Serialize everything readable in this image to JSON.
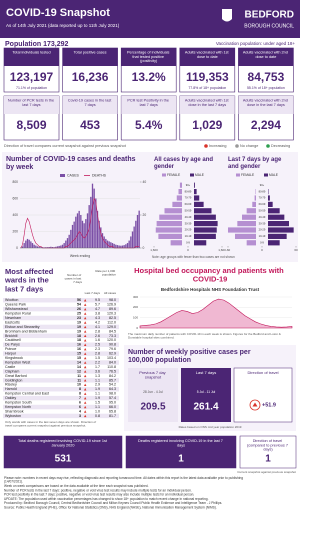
{
  "header": {
    "title": "COVID-19 Snapshot",
    "subtitle": "As of 14th July 2021 (data reported up to 11th July 2021)",
    "org_line1": "BEDFORD",
    "org_line2": "BOROUGH COUNCIL"
  },
  "population": {
    "label": "Population 173,292",
    "note": "Vaccination population: under aged 18+"
  },
  "tiles": [
    {
      "label": "Total individuals tested",
      "value": "123,197",
      "note": "71.1% of population"
    },
    {
      "label": "Total positive cases",
      "value": "16,236"
    },
    {
      "label": "Percentage of individuals that tested positive (positivity)",
      "value": "13.2%"
    },
    {
      "label": "Adults vaccinated with 1st dose to date",
      "value": "119,353",
      "note": "77.8% of 18+ population"
    },
    {
      "label": "Adults vaccinated with 2nd dose to date",
      "value": "84,753",
      "note": "55.1% of 18+ population"
    }
  ],
  "tiles_7day": [
    {
      "label": "Number of PCR tests in the last 7 days",
      "value": "8,509"
    },
    {
      "label": "Covid-19 cases in the last 7 days",
      "value": "453"
    },
    {
      "label": "PCR test Positivity in the last 7 days",
      "value": "5.4%"
    },
    {
      "label": "Adults vaccinated with 1st dose in the last 7 days",
      "value": "1,029"
    },
    {
      "label": "Adults vaccinated with 2nd dose in the last 7 days",
      "value": "2,294"
    }
  ],
  "legend": {
    "text": "Direction of travel compares current snapshot against previous snapshot",
    "items": [
      "Increasing",
      "No change",
      "Decreasing"
    ]
  },
  "cases_chart": {
    "title": "Number of COVID-19 cases and deaths by week",
    "legend": [
      "CASES",
      "DEATHS"
    ],
    "xlabel": "Week ending",
    "ylim": [
      0,
      800
    ],
    "yticks": [
      0,
      200,
      400,
      600,
      800
    ],
    "y2lim": [
      0,
      40
    ],
    "y2ticks": [
      0,
      20,
      40
    ],
    "cases": [
      5,
      20,
      60,
      90,
      110,
      100,
      80,
      60,
      40,
      30,
      20,
      15,
      10,
      10,
      8,
      10,
      10,
      12,
      15,
      12,
      10,
      15,
      20,
      25,
      30,
      40,
      60,
      90,
      120,
      160,
      220,
      280,
      320,
      380,
      420,
      450,
      400,
      330,
      300,
      350,
      420,
      520,
      620,
      780,
      720,
      600,
      450,
      330,
      250,
      180,
      140,
      110,
      90,
      80,
      70,
      60,
      50,
      40,
      35,
      30,
      28,
      30,
      35,
      45,
      60,
      90,
      140,
      200,
      260,
      330,
      400,
      453
    ],
    "deaths": [
      0,
      2,
      8,
      15,
      18,
      16,
      12,
      8,
      5,
      3,
      2,
      1,
      1,
      0,
      0,
      0,
      0,
      0,
      0,
      0,
      0,
      0,
      0,
      0,
      0,
      0,
      0,
      1,
      1,
      2,
      3,
      4,
      5,
      6,
      8,
      10,
      9,
      7,
      6,
      7,
      9,
      12,
      18,
      25,
      30,
      28,
      20,
      14,
      9,
      6,
      4,
      3,
      2,
      1,
      1,
      1,
      0,
      0,
      0,
      0,
      0,
      0,
      0,
      0,
      0,
      0,
      0,
      0,
      0,
      1,
      1,
      1
    ]
  },
  "age_all": {
    "title": "All cases by age and gender",
    "legend": [
      "FEMALE",
      "MALE"
    ],
    "groups": [
      "0-9",
      "10-19",
      "20-29",
      "30-39",
      "40-49",
      "50-59",
      "60-69",
      "70-79",
      "80-89",
      "90+"
    ],
    "female": [
      650,
      1350,
      1500,
      1450,
      1300,
      1000,
      550,
      300,
      200,
      120
    ],
    "male": [
      700,
      1250,
      1300,
      1350,
      1250,
      1000,
      550,
      300,
      150,
      50
    ],
    "xlim": [
      -1600,
      1600
    ],
    "xticks": [
      {
        "value": -1600,
        "label": "1,600"
      },
      0,
      {
        "value": 1600,
        "label": "1,600"
      }
    ]
  },
  "age_7day": {
    "title": "Last 7 days by age and gender",
    "legend": [
      "FEMALE",
      "MALE"
    ],
    "groups": [
      "0-9",
      "10-19",
      "20-29",
      "30-39",
      "40-49",
      "50-59",
      "60-69",
      "70-79",
      "80-89",
      "90+"
    ],
    "female": [
      20,
      45,
      60,
      40,
      30,
      20,
      8,
      3,
      1,
      0
    ],
    "male": [
      25,
      40,
      55,
      45,
      35,
      25,
      10,
      4,
      1,
      0
    ],
    "xlim": [
      -60,
      60
    ],
    "xticks": [
      -60,
      0,
      60
    ]
  },
  "age_note": "Note: age groups with fewer than two cases are not shown",
  "wards": {
    "title": "Most affected wards in the last 7 days",
    "headers": [
      "Number of cases in last 7 days",
      "Rate per 1,000 population",
      "Last 7 days",
      "All cases"
    ],
    "rows": [
      [
        "Wootton",
        "56",
        "9.5",
        "98.0"
      ],
      [
        "Queens Park",
        "54",
        "5.7",
        "126.9"
      ],
      [
        "Wilshamstead",
        "26",
        "4.7",
        "89.6"
      ],
      [
        "Kempston Rural",
        "25",
        "3.8",
        "120.3"
      ],
      [
        "Newnham",
        "23",
        "4.3",
        "82.5"
      ],
      [
        "Eastcotts",
        "19",
        "4.2",
        "112.0"
      ],
      [
        "Elstow and Stewartby",
        "19",
        "4.1",
        "129.0"
      ],
      [
        "Bromham and Biddenham",
        "19",
        "2.8",
        "84.5"
      ],
      [
        "Brickhill",
        "18",
        "2.6",
        "73.3"
      ],
      [
        "Cauldwell",
        "18",
        "1.6",
        "120.0"
      ],
      [
        "De Parys",
        "16",
        "2.5",
        "90.8"
      ],
      [
        "Putnoe",
        "16",
        "2.3",
        "79.6"
      ],
      [
        "Harpur",
        "15",
        "2.8",
        "62.9"
      ],
      [
        "Kingsbrook",
        "15",
        "1.5",
        "103.4"
      ],
      [
        "Kempston West",
        "14",
        "2.2",
        "84.0"
      ],
      [
        "Castle",
        "14",
        "1.7",
        "110.8"
      ],
      [
        "Clapham",
        "12",
        "3.6",
        "76.5"
      ],
      [
        "Great Barford",
        "11",
        "1.3",
        "84.2"
      ],
      [
        "Goldington",
        "11",
        "1.1",
        "85.7"
      ],
      [
        "Riseley",
        "10",
        "2.9",
        "54.2"
      ],
      [
        "Harrold",
        "8",
        "1.9",
        "64.3"
      ],
      [
        "Kempston Central and East",
        "8",
        "1.1",
        "98.0"
      ],
      [
        "Oakley",
        "7",
        "1.9",
        "57.4"
      ],
      [
        "Kempston South",
        "6",
        "1.5",
        "95.0"
      ],
      [
        "Kempston North",
        "6",
        "1.1",
        "66.0"
      ],
      [
        "Sharnbrook",
        "4",
        "1.0",
        "65.8"
      ],
      [
        "Wyboston",
        "3",
        "0.8",
        "81.7"
      ]
    ],
    "note": "Only wards with cases in the last seven days are shown. Direction of travel compares current snapshot against previous snapshot."
  },
  "hospital": {
    "title": "Hospital bed occupancy and patients with COVID-19",
    "subtitle": "Bedfordshire Hospitals NHS Foundation Trust",
    "values": [
      20,
      25,
      30,
      40,
      60,
      90,
      120,
      150,
      170,
      160,
      140,
      150,
      180,
      220,
      260,
      280,
      270,
      240,
      200,
      160,
      120,
      90,
      60,
      40,
      25,
      15,
      10,
      8,
      10,
      15
    ],
    "ylim": [
      0,
      300
    ],
    "yticks": [
      0,
      100,
      200,
      300
    ],
    "note": "The maximum daily number of patients with COVID-19 in each week is shown. Figures for the Bedford and Luton & Dunstable hospital sites combined."
  },
  "rates": {
    "title": "Number of weekly positive cases per 100,000 population",
    "prev_label": "Previous 7 day snapshot",
    "prev_dates": "28 Jun - 4 Jul",
    "prev": "209.5",
    "last_label": "Last 7 days",
    "last_dates": "5 Jul - 11 Jul",
    "last": "261.4",
    "dir_label": "Direction of travel",
    "dir": "+51.9",
    "note": "Rates based on ONS mid year population 2019"
  },
  "deaths": [
    {
      "label": "Total deaths registered involving COVID-19 since 1st January 2020",
      "value": "531"
    },
    {
      "label": "Deaths registered involving COVID-19 in the last 7 days",
      "value": "1"
    },
    {
      "label": "Direction of travel (compared to previous 7 days)",
      "value": "1"
    }
  ],
  "deaths_note": "Current snapshot against previous snapshot",
  "notes": [
    "Please note: numbers in recent days may rise, reflecting diagnostic and reporting turnaround time. All dates within this report is the latest data available prior to publishing (14/07/2021).",
    "Week on week comparisons are based on the data available at the time each snapshot was published.",
    "Number of PCR tests in the last 7 days: positive, negative or void virus test results may include multiple tests for an individual person.",
    "PCR test positivity in the last 7 days: positive, negative or void virus test results may also include multiple tests for an individual person.",
    "UPDATE: The population used within vaccination percentages has changed to show 18+ population to match recent change in national reporting.",
    "Produced by: Bedford Borough Council, Central Bedfordshire Council and Milton Keynes Council Public Health Evidence and Intelligence Team - J Phillips.",
    "Source: Public Health England (PHE), Office for National Statistics (ONS), NHS England (NHSE), National Immunisation Management System (NIMS)."
  ]
}
